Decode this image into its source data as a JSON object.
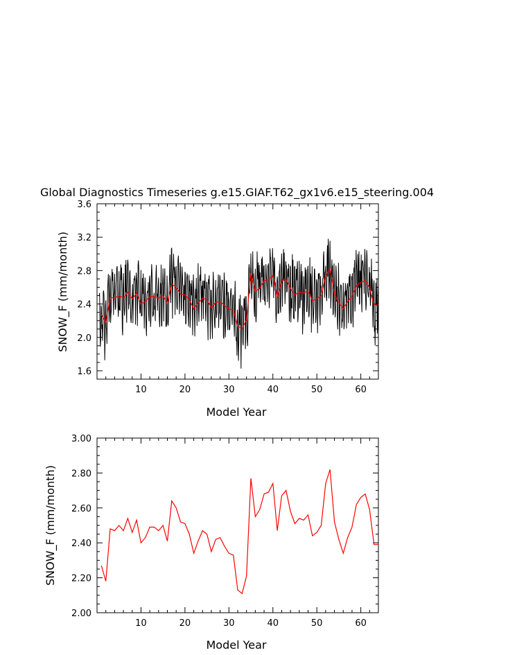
{
  "chart_data": [
    {
      "type": "line",
      "title": "Global Diagnostics Timeseries g.e15.GIAF.T62_gx1v6.e15_steering.004",
      "xlabel": "Model Year",
      "ylabel": "SNOW_F (mm/month)",
      "xlim": [
        0,
        64
      ],
      "ylim": [
        1.5,
        3.6
      ],
      "xticks": [
        "10",
        "20",
        "30",
        "40",
        "50",
        "60"
      ],
      "yticks": [
        "1.6",
        "2.0",
        "2.4",
        "2.8",
        "3.2",
        "3.6"
      ],
      "series": [
        {
          "color": "#000000",
          "note_monthly_seed": "monthly values",
          "x": [],
          "y": []
        },
        {
          "color": "#ff0000",
          "x": [
            1,
            2,
            3,
            4,
            5,
            6,
            7,
            8,
            9,
            10,
            11,
            12,
            13,
            14,
            15,
            16,
            17,
            18,
            19,
            20,
            21,
            22,
            23,
            24,
            25,
            26,
            27,
            28,
            29,
            30,
            31,
            32,
            33,
            34,
            35,
            36,
            37,
            38,
            39,
            40,
            41,
            42,
            43,
            44,
            45,
            46,
            47,
            48,
            49,
            50,
            51,
            52,
            53,
            54,
            55,
            56,
            57,
            58,
            59,
            60,
            61,
            62,
            63,
            64
          ],
          "y": [
            2.27,
            2.18,
            2.48,
            2.47,
            2.5,
            2.47,
            2.54,
            2.46,
            2.53,
            2.4,
            2.43,
            2.49,
            2.49,
            2.47,
            2.5,
            2.41,
            2.64,
            2.6,
            2.52,
            2.51,
            2.45,
            2.34,
            2.41,
            2.47,
            2.45,
            2.35,
            2.42,
            2.43,
            2.38,
            2.34,
            2.33,
            2.13,
            2.11,
            2.21,
            2.77,
            2.55,
            2.59,
            2.68,
            2.69,
            2.74,
            2.47,
            2.67,
            2.7,
            2.58,
            2.51,
            2.54,
            2.53,
            2.56,
            2.44,
            2.46,
            2.5,
            2.74,
            2.82,
            2.52,
            2.42,
            2.34,
            2.43,
            2.49,
            2.62,
            2.66,
            2.68,
            2.59,
            2.39,
            2.39
          ]
        }
      ]
    },
    {
      "type": "line",
      "title": "",
      "xlabel": "Model Year",
      "ylabel": "SNOW_F (mm/month)",
      "xlim": [
        0,
        64
      ],
      "ylim": [
        2.0,
        3.0
      ],
      "xticks": [
        "10",
        "20",
        "30",
        "40",
        "50",
        "60"
      ],
      "yticks": [
        "2.00",
        "2.20",
        "2.40",
        "2.60",
        "2.80",
        "3.00"
      ],
      "series": [
        {
          "color": "#ff0000",
          "x": [
            1,
            2,
            3,
            4,
            5,
            6,
            7,
            8,
            9,
            10,
            11,
            12,
            13,
            14,
            15,
            16,
            17,
            18,
            19,
            20,
            21,
            22,
            23,
            24,
            25,
            26,
            27,
            28,
            29,
            30,
            31,
            32,
            33,
            34,
            35,
            36,
            37,
            38,
            39,
            40,
            41,
            42,
            43,
            44,
            45,
            46,
            47,
            48,
            49,
            50,
            51,
            52,
            53,
            54,
            55,
            56,
            57,
            58,
            59,
            60,
            61,
            62,
            63,
            64
          ],
          "y": [
            2.27,
            2.18,
            2.48,
            2.47,
            2.5,
            2.47,
            2.54,
            2.46,
            2.53,
            2.4,
            2.43,
            2.49,
            2.49,
            2.47,
            2.5,
            2.41,
            2.64,
            2.6,
            2.52,
            2.51,
            2.45,
            2.34,
            2.41,
            2.47,
            2.45,
            2.35,
            2.42,
            2.43,
            2.38,
            2.34,
            2.33,
            2.13,
            2.11,
            2.21,
            2.77,
            2.55,
            2.59,
            2.68,
            2.69,
            2.74,
            2.47,
            2.67,
            2.7,
            2.58,
            2.51,
            2.54,
            2.53,
            2.56,
            2.44,
            2.46,
            2.5,
            2.74,
            2.82,
            2.52,
            2.42,
            2.34,
            2.43,
            2.49,
            2.62,
            2.66,
            2.68,
            2.59,
            2.39,
            2.39
          ]
        }
      ]
    }
  ]
}
